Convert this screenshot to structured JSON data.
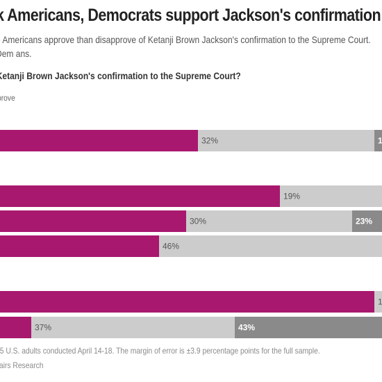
{
  "title": "k Americans, Democrats support Jackson's confirmation",
  "subtitle": "e Americans approve than disapprove of Ketanji Brown Jackson's confirmation to the Supreme Court. Dem ans.",
  "question": "of Ketanji Brown Jackson's confirmation to the Supreme Court?",
  "legend_text": "prove",
  "note": "05 U.S. adults conducted April 14-18. The margin of error is ±3.9 percentage points for the full sample.",
  "source": "fairs Research",
  "colors": {
    "approve": "#a8186e",
    "neither": "#cccccc",
    "disapprove": "#8a8a8a",
    "dark_label": "#ffffff",
    "light_label": "#555555"
  },
  "chart_data": {
    "type": "bar",
    "orientation": "horizontal",
    "stacked": true,
    "series_colors": [
      "#a8186e",
      "#cccccc",
      "#8a8a8a"
    ],
    "rows": [
      {
        "segments": [
          {
            "label": ""
          },
          {
            "label": "32%"
          },
          {
            "label": "1"
          }
        ]
      },
      {
        "segments": [
          {
            "label": ""
          },
          {
            "label": "19%"
          },
          {
            "label": ""
          }
        ]
      },
      {
        "segments": [
          {
            "label": ""
          },
          {
            "label": "30%"
          },
          {
            "label": "23%"
          }
        ]
      },
      {
        "segments": [
          {
            "label": ""
          },
          {
            "label": "46%"
          },
          {
            "label": ""
          }
        ]
      },
      {
        "segments": [
          {
            "label": ""
          },
          {
            "label": "1"
          },
          {
            "label": ""
          }
        ]
      },
      {
        "segments": [
          {
            "label": ""
          },
          {
            "label": "37%"
          },
          {
            "label": "43%"
          }
        ]
      }
    ]
  }
}
